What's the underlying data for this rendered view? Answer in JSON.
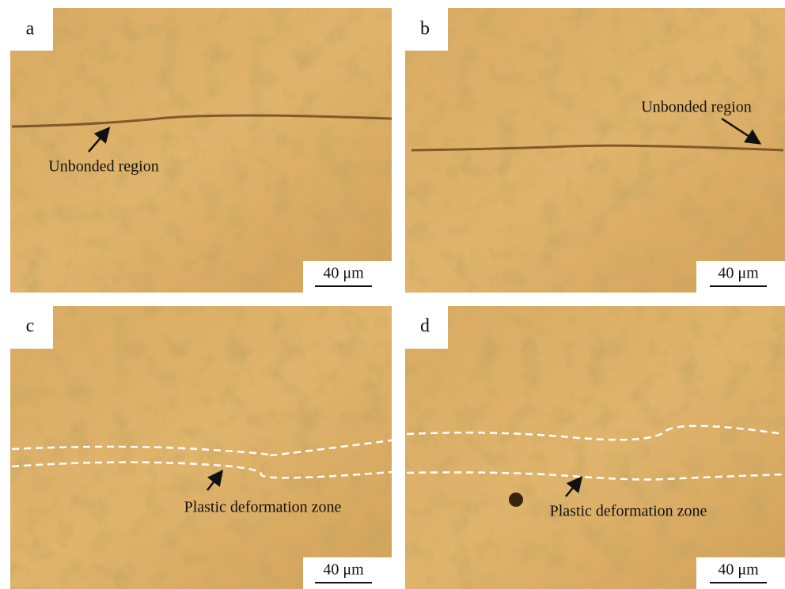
{
  "panels": [
    {
      "label": "a",
      "annotation": "Unbonded region",
      "scale_bar": "40 μm"
    },
    {
      "label": "b",
      "annotation": "Unbonded region",
      "scale_bar": "40 μm"
    },
    {
      "label": "c",
      "annotation": "Plastic deformation zone",
      "scale_bar": "40 μm"
    },
    {
      "label": "d",
      "annotation": "Plastic deformation zone",
      "scale_bar": "40 μm"
    }
  ]
}
